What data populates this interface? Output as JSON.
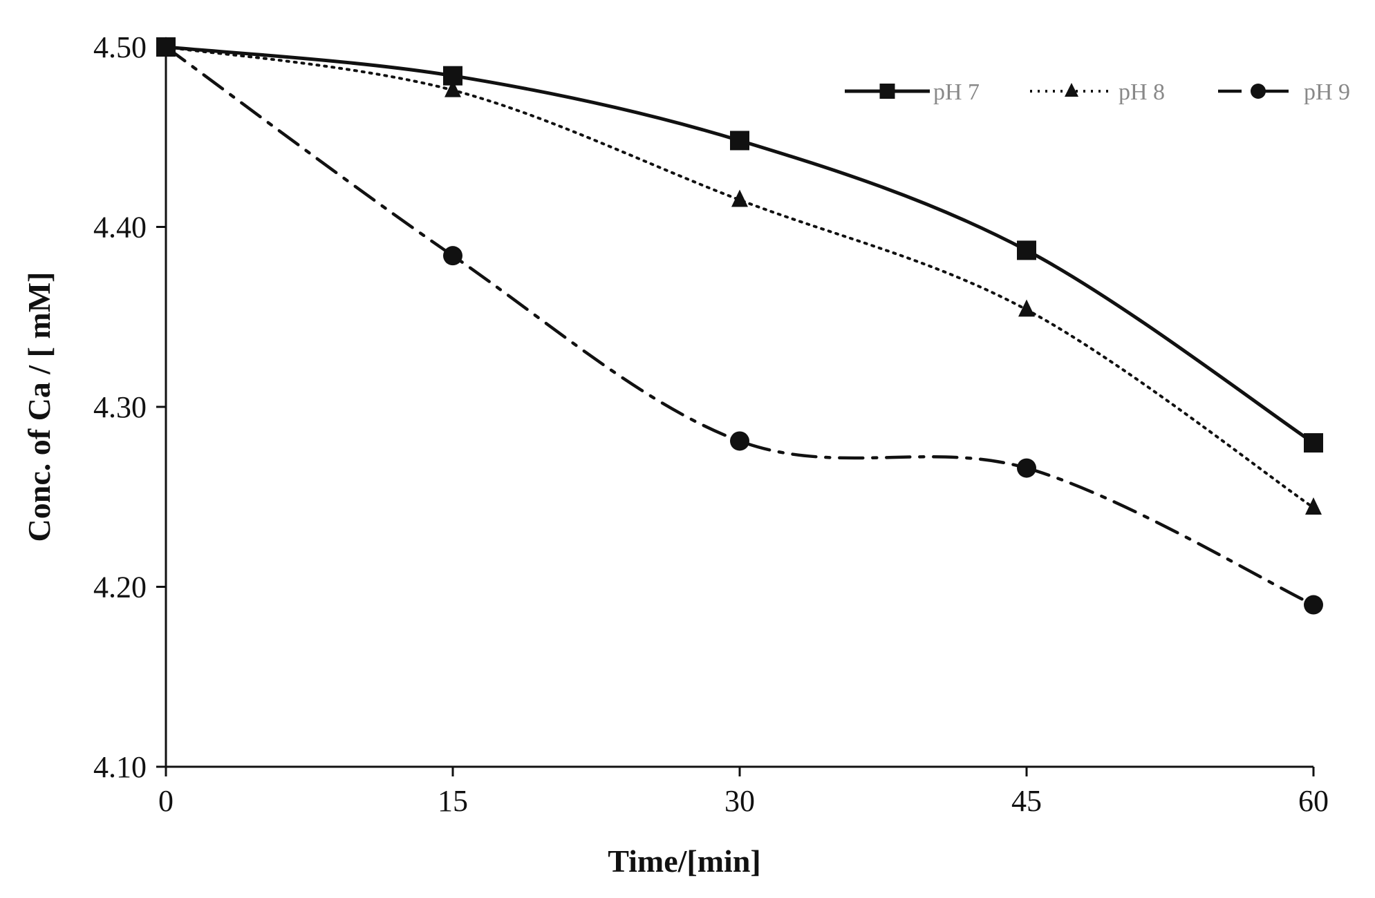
{
  "chart_data": {
    "type": "line",
    "title": "",
    "xlabel": "Time/[min]",
    "ylabel": "Conc. of Ca / [ mM]",
    "x": [
      0,
      15,
      30,
      45,
      60
    ],
    "x_ticks": [
      "0",
      "15",
      "30",
      "45",
      "60"
    ],
    "xlim": [
      0,
      60
    ],
    "ylim": [
      4.1,
      4.5
    ],
    "y_ticks": [
      "4.10",
      "4.20",
      "4.30",
      "4.40",
      "4.50"
    ],
    "y_tick_values": [
      4.1,
      4.2,
      4.3,
      4.4,
      4.5
    ],
    "grid": false,
    "legend_position": "top-right",
    "series": [
      {
        "name": "pH 7",
        "values": [
          4.5,
          4.484,
          4.448,
          4.387,
          4.28
        ],
        "marker": "square",
        "line_style": "solid",
        "color": "#111111"
      },
      {
        "name": "pH 8",
        "values": [
          4.5,
          4.476,
          4.415,
          4.354,
          4.244
        ],
        "marker": "triangle",
        "line_style": "dotted",
        "color": "#111111"
      },
      {
        "name": "pH 9",
        "values": [
          4.5,
          4.384,
          4.281,
          4.266,
          4.19
        ],
        "marker": "circle",
        "line_style": "dashdot",
        "color": "#111111"
      }
    ]
  }
}
